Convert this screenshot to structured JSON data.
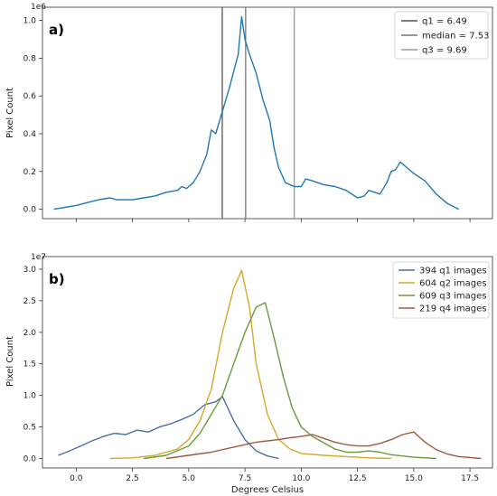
{
  "chart_data": [
    {
      "panel_label": "a)",
      "type": "line",
      "ylabel": "Pixel Count",
      "y_exponent": "1e6",
      "xlim": [
        -1.5,
        18.5
      ],
      "ylim": [
        -0.05,
        1.07
      ],
      "yticks": [
        "0.0",
        "0.2",
        "0.4",
        "0.6",
        "0.8",
        "1.0"
      ],
      "ytick_values": [
        0,
        0.2,
        0.4,
        0.6,
        0.8,
        1.0
      ],
      "xtick_values": [
        0,
        2.5,
        5,
        7.5,
        10,
        12.5,
        15,
        17.5
      ],
      "xtick_labels_shown": false,
      "grid": false,
      "legend_position": "top-right",
      "series": [
        {
          "color": "#1f77b4",
          "x": [
            -1.0,
            -0.5,
            0.0,
            0.5,
            1.0,
            1.5,
            1.8,
            2.1,
            2.5,
            3.0,
            3.5,
            4.0,
            4.5,
            4.7,
            4.9,
            5.2,
            5.5,
            5.8,
            6.0,
            6.2,
            6.5,
            6.8,
            7.0,
            7.2,
            7.35,
            7.5,
            7.7,
            8.0,
            8.3,
            8.6,
            8.8,
            9.0,
            9.3,
            9.7,
            10.0,
            10.2,
            10.5,
            11.0,
            11.5,
            12.0,
            12.5,
            12.8,
            13.0,
            13.5,
            13.8,
            14.0,
            14.2,
            14.4,
            14.7,
            15.0,
            15.5,
            16.0,
            16.5,
            17.0
          ],
          "y": [
            0.0,
            0.01,
            0.02,
            0.035,
            0.05,
            0.06,
            0.05,
            0.05,
            0.05,
            0.06,
            0.07,
            0.09,
            0.1,
            0.12,
            0.11,
            0.14,
            0.2,
            0.29,
            0.42,
            0.4,
            0.52,
            0.64,
            0.73,
            0.82,
            1.02,
            0.9,
            0.82,
            0.72,
            0.58,
            0.47,
            0.32,
            0.22,
            0.14,
            0.12,
            0.12,
            0.16,
            0.15,
            0.13,
            0.12,
            0.1,
            0.06,
            0.07,
            0.1,
            0.08,
            0.14,
            0.2,
            0.21,
            0.25,
            0.22,
            0.19,
            0.15,
            0.08,
            0.03,
            0.0
          ]
        }
      ],
      "vlines": [
        {
          "label": "q1 = 6.49",
          "x": 6.49,
          "color": "#555555"
        },
        {
          "label": "median = 7.53",
          "x": 7.53,
          "color": "#777777"
        },
        {
          "label": "q3 = 9.69",
          "x": 9.69,
          "color": "#999999"
        }
      ]
    },
    {
      "panel_label": "b)",
      "type": "line",
      "xlabel": "Degrees Celsius",
      "ylabel": "Pixel Count",
      "y_exponent": "1e7",
      "xlim": [
        -1.5,
        18.5
      ],
      "ylim": [
        -0.15,
        3.2
      ],
      "yticks": [
        "0.0",
        "0.5",
        "1.0",
        "1.5",
        "2.0",
        "2.5",
        "3.0"
      ],
      "ytick_values": [
        0,
        0.5,
        1.0,
        1.5,
        2.0,
        2.5,
        3.0
      ],
      "xticks": [
        "0.0",
        "2.5",
        "5.0",
        "7.5",
        "10.0",
        "12.5",
        "15.0",
        "17.5"
      ],
      "xtick_values": [
        0,
        2.5,
        5,
        7.5,
        10,
        12.5,
        15,
        17.5
      ],
      "grid": false,
      "legend_position": "top-right",
      "series": [
        {
          "name": "394 q1 images",
          "color": "#4b6fa8",
          "x": [
            -0.8,
            -0.3,
            0.2,
            0.7,
            1.2,
            1.7,
            2.2,
            2.7,
            3.2,
            3.7,
            4.2,
            4.7,
            5.2,
            5.7,
            6.2,
            6.5,
            7.0,
            7.5,
            8.0,
            8.5,
            9.0
          ],
          "y": [
            0.05,
            0.12,
            0.2,
            0.28,
            0.35,
            0.4,
            0.38,
            0.45,
            0.42,
            0.5,
            0.55,
            0.62,
            0.7,
            0.85,
            0.9,
            0.98,
            0.6,
            0.3,
            0.12,
            0.04,
            0.0
          ]
        },
        {
          "name": "604 q2 images",
          "color": "#d4a82a",
          "x": [
            1.5,
            2.5,
            3.5,
            4.5,
            5.0,
            5.5,
            6.0,
            6.5,
            7.0,
            7.35,
            7.7,
            8.0,
            8.5,
            9.0,
            9.5,
            10.0,
            11.0,
            12.0,
            13.0,
            14.0
          ],
          "y": [
            0.0,
            0.01,
            0.05,
            0.15,
            0.3,
            0.6,
            1.1,
            2.0,
            2.7,
            2.98,
            2.4,
            1.5,
            0.7,
            0.3,
            0.15,
            0.08,
            0.05,
            0.03,
            0.01,
            0.0
          ]
        },
        {
          "name": "609 q3 images",
          "color": "#6a9a3a",
          "x": [
            3.0,
            4.0,
            5.0,
            5.5,
            6.0,
            6.5,
            7.0,
            7.5,
            8.0,
            8.4,
            8.8,
            9.2,
            9.6,
            10.0,
            10.5,
            11.0,
            11.5,
            12.0,
            12.5,
            13.0,
            13.5,
            14.0,
            14.5,
            15.0,
            16.0
          ],
          "y": [
            0.0,
            0.05,
            0.2,
            0.4,
            0.7,
            1.0,
            1.5,
            2.0,
            2.4,
            2.47,
            1.9,
            1.3,
            0.8,
            0.5,
            0.35,
            0.25,
            0.15,
            0.1,
            0.1,
            0.12,
            0.1,
            0.06,
            0.04,
            0.02,
            0.0
          ]
        },
        {
          "name": "219 q4 images",
          "color": "#a05a40",
          "x": [
            4.0,
            5.0,
            6.0,
            7.0,
            7.5,
            8.0,
            8.5,
            9.0,
            9.5,
            10.0,
            10.5,
            11.0,
            11.5,
            12.0,
            12.5,
            13.0,
            13.5,
            14.0,
            14.5,
            15.0,
            15.5,
            16.0,
            16.5,
            17.0,
            18.0
          ],
          "y": [
            0.0,
            0.05,
            0.1,
            0.18,
            0.22,
            0.26,
            0.28,
            0.3,
            0.33,
            0.35,
            0.38,
            0.32,
            0.26,
            0.22,
            0.2,
            0.2,
            0.24,
            0.3,
            0.38,
            0.42,
            0.26,
            0.14,
            0.07,
            0.03,
            0.0
          ]
        }
      ]
    }
  ]
}
